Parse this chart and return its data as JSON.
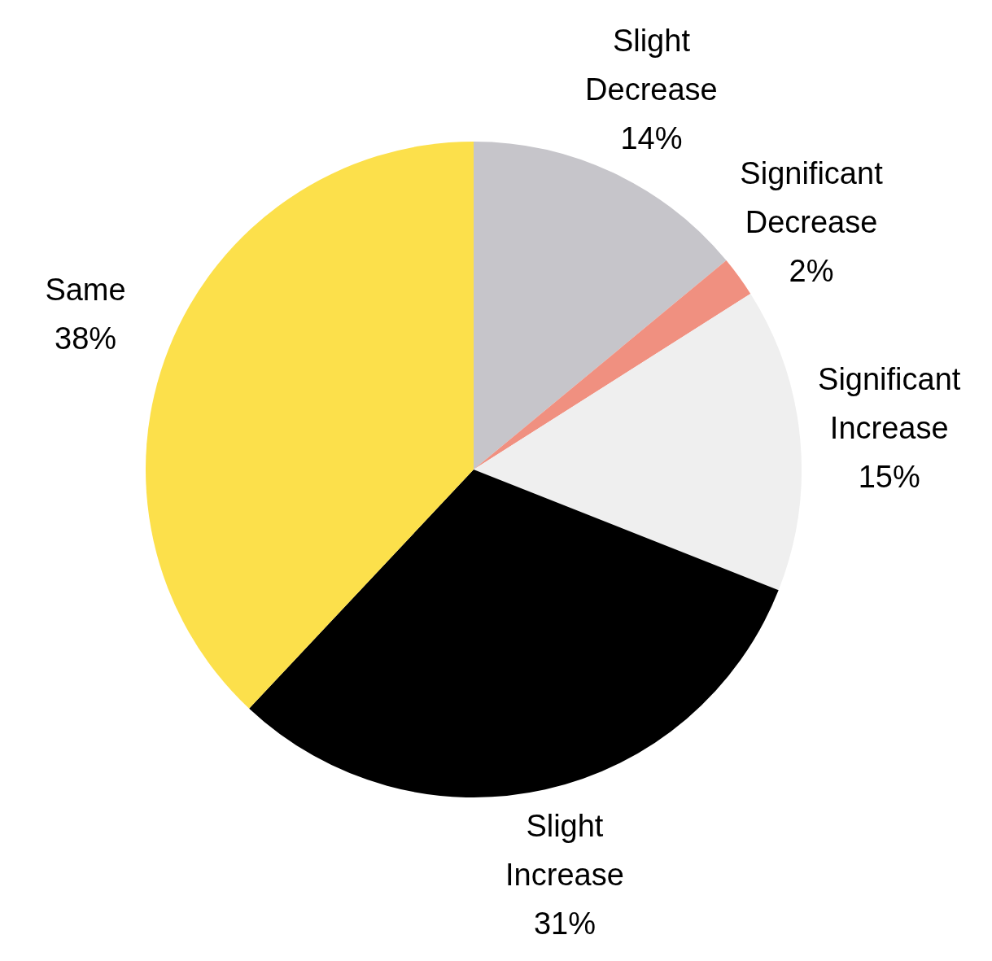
{
  "chart_data": {
    "type": "pie",
    "categories": [
      "Slight Decrease",
      "Significant Decrease",
      "Significant Increase",
      "Slight Increase",
      "Same"
    ],
    "values": [
      14,
      2,
      15,
      31,
      38
    ],
    "colors": [
      "#c6c5ca",
      "#f09080",
      "#efefef",
      "#000000",
      "#fce04b"
    ],
    "value_labels": [
      "14%",
      "2%",
      "15%",
      "31%",
      "38%"
    ],
    "legend": false
  }
}
